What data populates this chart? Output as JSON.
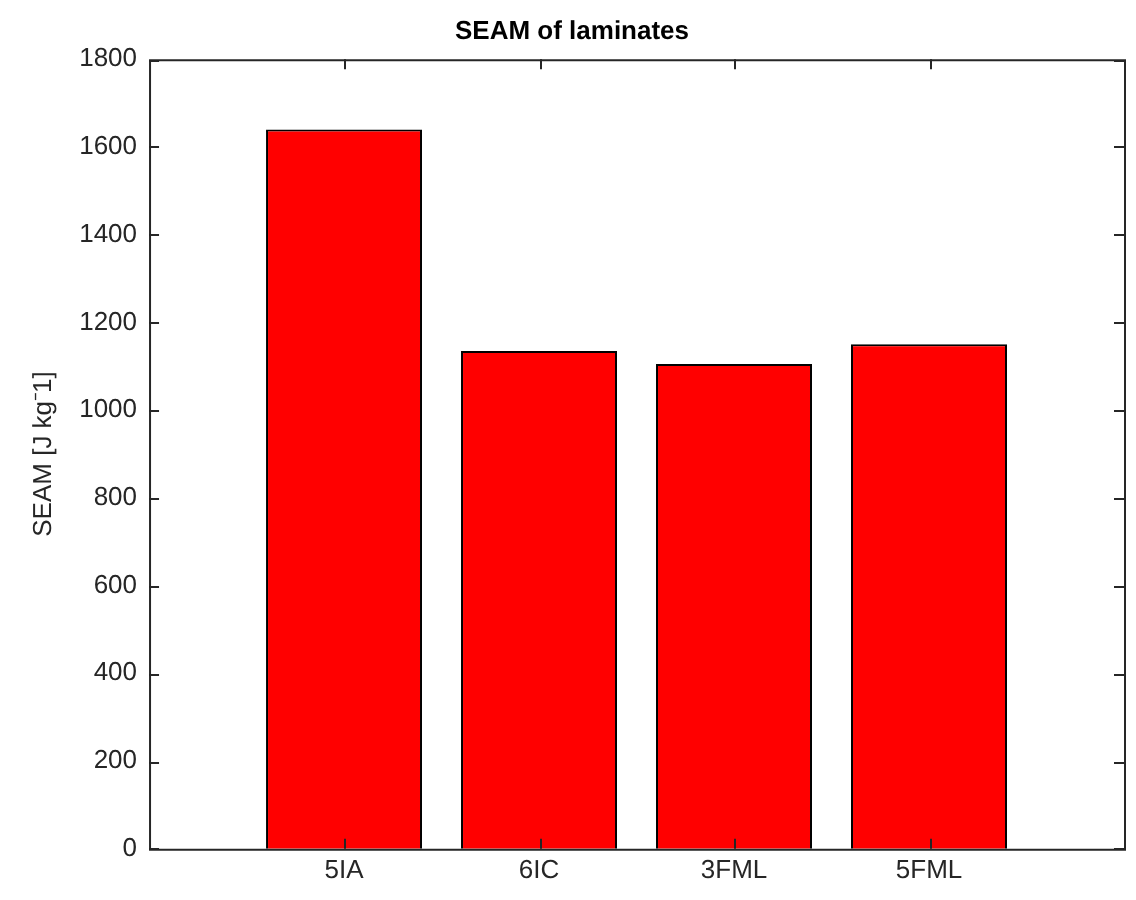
{
  "chart_data": {
    "type": "bar",
    "title": "SEAM of laminates",
    "ylabel": "SEAM [J kg⁻1]",
    "categories": [
      "5IA",
      "6IC",
      "3FML",
      "5FML"
    ],
    "values": [
      1640,
      1135,
      1105,
      1150
    ],
    "color": "#ff0000",
    "ylim": [
      0,
      1800
    ],
    "yticks": [
      0,
      200,
      400,
      600,
      800,
      1000,
      1200,
      1400,
      1600,
      1800
    ],
    "grid": false,
    "legend": false
  }
}
